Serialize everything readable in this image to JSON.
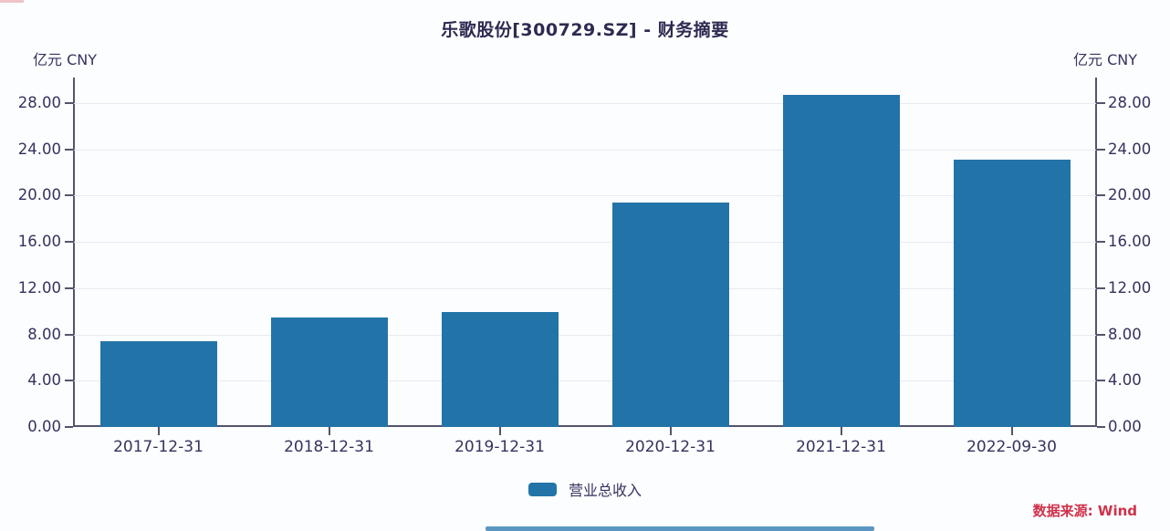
{
  "title": "乐歌股份[300729.SZ] - 财务摘要",
  "axis_units": {
    "left": "亿元 CNY",
    "right": "亿元 CNY"
  },
  "legend": {
    "label": "营业总收入"
  },
  "source": {
    "label": "数据来源: Wind"
  },
  "colors": {
    "bar": "#2274a8",
    "text": "#37325f",
    "axis": "#54546a",
    "grid": "#e9e9f2",
    "source_text": "#d03049",
    "bottom_strip": "#5b96c2"
  },
  "chart_data": {
    "type": "bar",
    "title": "乐歌股份[300729.SZ] - 财务摘要",
    "categories": [
      "2017-12-31",
      "2018-12-31",
      "2019-12-31",
      "2020-12-31",
      "2021-12-31",
      "2022-09-30"
    ],
    "series": [
      {
        "name": "营业总收入",
        "values": [
          7.44,
          9.5,
          9.9,
          19.42,
          28.71,
          23.12
        ]
      }
    ],
    "ylabel_left": "亿元 CNY",
    "ylabel_right": "亿元 CNY",
    "yticks": [
      0,
      4,
      8,
      12,
      16,
      20,
      24,
      28
    ],
    "ytick_decimals": 2,
    "ylim": [
      0,
      30.2
    ],
    "grid": true,
    "legend_position": "bottom",
    "units": "亿元 CNY"
  }
}
